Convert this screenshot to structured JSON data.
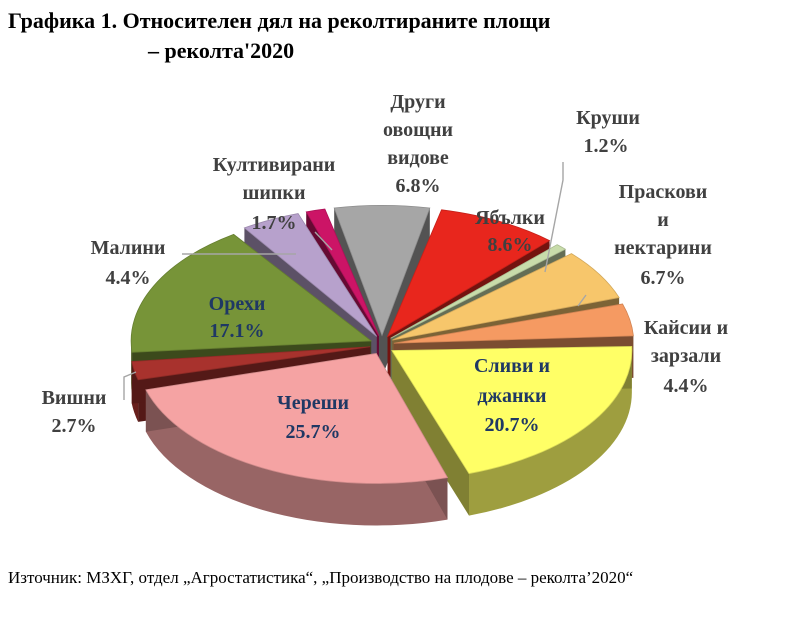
{
  "title_line1": "Графика 1. Относителен дял на реколтираните площи",
  "title_line2": "– реколта'2020",
  "source_text": "Източник: МЗХГ, отдел „Агростатистика“,  „Производство на плодове – реколта’2020“",
  "chart_data": {
    "type": "pie",
    "style": "3d-exploded",
    "title": "Графика 1. Относителен дял на реколтираните площи – реколта'2020",
    "unit": "%",
    "slices": [
      {
        "label": "Ябълки",
        "value": 8.6,
        "color": "#e8261d"
      },
      {
        "label": "Круши",
        "value": 1.2,
        "color": "#c8dcaa"
      },
      {
        "label": "Праскови и нектарини",
        "value": 6.7,
        "color": "#f7c66b"
      },
      {
        "label": "Кайсии и зарзали",
        "value": 4.4,
        "color": "#f59a62"
      },
      {
        "label": "Сливи и джанки",
        "value": 20.7,
        "color": "#ffff66"
      },
      {
        "label": "Череши",
        "value": 25.7,
        "color": "#f5a3a3"
      },
      {
        "label": "Вишни",
        "value": 2.7,
        "color": "#a8322d"
      },
      {
        "label": "Орехи",
        "value": 17.1,
        "color": "#779438"
      },
      {
        "label": "Малини",
        "value": 4.4,
        "color": "#b7a1cc"
      },
      {
        "label": "Култивирани шипки",
        "value": 1.7,
        "color": "#cc1466"
      },
      {
        "label": "Други овощни видове",
        "value": 6.8,
        "color": "#a6a6a6"
      }
    ]
  },
  "labels": {
    "yabalki": {
      "name": "Ябълки",
      "pct": "8.6%"
    },
    "krushi": {
      "name": "Круши",
      "pct": "1.2%"
    },
    "praskovi": {
      "l1": "Праскови",
      "l2": "и",
      "l3": "нектарини",
      "pct": "6.7%"
    },
    "kaysii": {
      "l1": "Кайсии и",
      "l2": "зарзали",
      "pct": "4.4%"
    },
    "slivi": {
      "l1": "Сливи и",
      "l2": "джанки",
      "pct": "20.7%"
    },
    "chereshi": {
      "name": "Череши",
      "pct": "25.7%"
    },
    "vishni": {
      "name": "Вишни",
      "pct": "2.7%"
    },
    "orehi": {
      "name": "Орехи",
      "pct": "17.1%"
    },
    "malini": {
      "name": "Малини",
      "pct": "4.4%"
    },
    "shipki": {
      "l1": "Култивирани",
      "l2": "шипки",
      "pct": "1.7%"
    },
    "drugi": {
      "l1": "Други",
      "l2": "овощни",
      "l3": "видове",
      "pct": "6.8%"
    }
  }
}
